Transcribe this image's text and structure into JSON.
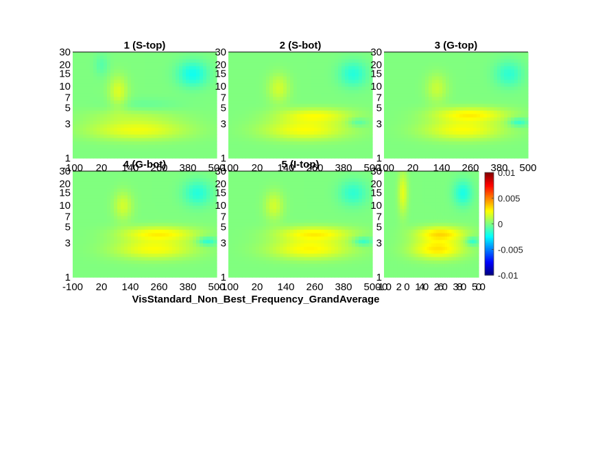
{
  "figure": {
    "suptitle": "VisStandard_Non_Best_Frequency_GrandAverage"
  },
  "chart_data": [
    {
      "type": "heatmap",
      "title": "1 (S-top)",
      "x_ticks": [
        "-100",
        "20",
        "140",
        "260",
        "380",
        "500"
      ],
      "y_ticks": [
        "1",
        "3",
        "5",
        "7",
        "10",
        "15",
        "20",
        "30"
      ],
      "xlim": [
        -100,
        500
      ],
      "ylim": [
        1,
        30
      ],
      "y_scale": "log",
      "features": [
        {
          "x": 170,
          "y": 2.5,
          "wx": 420,
          "wy": 0.14,
          "value": 0.0022
        },
        {
          "x": 150,
          "y": 4.0,
          "wx": 400,
          "wy": 0.1,
          "value": 0.0008
        },
        {
          "x": 90,
          "y": 8.5,
          "wx": 80,
          "wy": 0.22,
          "value": 0.0018
        },
        {
          "x": 400,
          "y": 15,
          "wx": 130,
          "wy": 0.18,
          "value": -0.0022
        },
        {
          "x": 20,
          "y": 20,
          "wx": 60,
          "wy": 0.15,
          "value": -0.0008
        },
        {
          "x": 200,
          "y": 5.5,
          "wx": 300,
          "wy": 0.1,
          "value": -0.0005
        }
      ]
    },
    {
      "type": "heatmap",
      "title": "2 (S-bot)",
      "x_ticks": [
        "-100",
        "20",
        "140",
        "260",
        "380",
        "500"
      ],
      "y_ticks": [
        "1",
        "3",
        "5",
        "7",
        "10",
        "15",
        "20",
        "30"
      ],
      "xlim": [
        -100,
        500
      ],
      "ylim": [
        1,
        30
      ],
      "y_scale": "log",
      "features": [
        {
          "x": 220,
          "y": 2.5,
          "wx": 360,
          "wy": 0.14,
          "value": 0.0024
        },
        {
          "x": 260,
          "y": 4.0,
          "wx": 320,
          "wy": 0.1,
          "value": 0.0022
        },
        {
          "x": 110,
          "y": 9.5,
          "wx": 90,
          "wy": 0.2,
          "value": 0.0016
        },
        {
          "x": 420,
          "y": 15,
          "wx": 120,
          "wy": 0.18,
          "value": -0.0018
        },
        {
          "x": 440,
          "y": 3.2,
          "wx": 80,
          "wy": 0.06,
          "value": -0.0012
        }
      ]
    },
    {
      "type": "heatmap",
      "title": "3 (G-top)",
      "x_ticks": [
        "-100",
        "20",
        "140",
        "260",
        "380",
        "500"
      ],
      "y_ticks": [
        "1",
        "3",
        "5",
        "7",
        "10",
        "15",
        "20",
        "30"
      ],
      "xlim": [
        -100,
        500
      ],
      "ylim": [
        1,
        30
      ],
      "y_scale": "log",
      "features": [
        {
          "x": 230,
          "y": 2.5,
          "wx": 340,
          "wy": 0.14,
          "value": 0.0024
        },
        {
          "x": 260,
          "y": 4.1,
          "wx": 320,
          "wy": 0.1,
          "value": 0.0026
        },
        {
          "x": 120,
          "y": 9.5,
          "wx": 90,
          "wy": 0.2,
          "value": 0.0014
        },
        {
          "x": 420,
          "y": 15,
          "wx": 120,
          "wy": 0.18,
          "value": -0.0016
        },
        {
          "x": 460,
          "y": 3.2,
          "wx": 80,
          "wy": 0.06,
          "value": -0.0018
        }
      ]
    },
    {
      "type": "heatmap",
      "title": "4 (G-bot)",
      "x_ticks": [
        "-100",
        "20",
        "140",
        "260",
        "380",
        "500"
      ],
      "y_ticks": [
        "1",
        "3",
        "5",
        "7",
        "10",
        "15",
        "20",
        "30"
      ],
      "xlim": [
        -100,
        500
      ],
      "ylim": [
        1,
        30
      ],
      "y_scale": "log",
      "features": [
        {
          "x": 240,
          "y": 2.5,
          "wx": 340,
          "wy": 0.14,
          "value": 0.0024
        },
        {
          "x": 260,
          "y": 4.1,
          "wx": 320,
          "wy": 0.1,
          "value": 0.0026
        },
        {
          "x": 110,
          "y": 10,
          "wx": 80,
          "wy": 0.2,
          "value": 0.0016
        },
        {
          "x": 420,
          "y": 15,
          "wx": 120,
          "wy": 0.18,
          "value": -0.0018
        },
        {
          "x": 460,
          "y": 3.2,
          "wx": 80,
          "wy": 0.06,
          "value": -0.002
        }
      ]
    },
    {
      "type": "heatmap",
      "title": "5 (I-top)",
      "x_ticks": [
        "-100",
        "20",
        "140",
        "260",
        "380",
        "500"
      ],
      "y_ticks": [
        "1",
        "3",
        "5",
        "7",
        "10",
        "15",
        "20",
        "30"
      ],
      "xlim": [
        -100,
        500
      ],
      "ylim": [
        1,
        30
      ],
      "y_scale": "log",
      "features": [
        {
          "x": 240,
          "y": 2.5,
          "wx": 340,
          "wy": 0.14,
          "value": 0.0026
        },
        {
          "x": 260,
          "y": 4.1,
          "wx": 320,
          "wy": 0.1,
          "value": 0.0026
        },
        {
          "x": 90,
          "y": 10,
          "wx": 80,
          "wy": 0.2,
          "value": 0.0016
        },
        {
          "x": 420,
          "y": 15,
          "wx": 120,
          "wy": 0.18,
          "value": -0.0016
        },
        {
          "x": 460,
          "y": 3.2,
          "wx": 80,
          "wy": 0.06,
          "value": -0.0018
        }
      ]
    },
    {
      "type": "heatmap",
      "title": "",
      "x_ticks": [
        "-100",
        "20",
        "140",
        "260",
        "380",
        "500"
      ],
      "y_ticks": [
        "1",
        "3",
        "5",
        "7",
        "10",
        "15",
        "20",
        "30"
      ],
      "xlim": [
        -100,
        500
      ],
      "ylim": [
        1,
        30
      ],
      "y_scale": "log",
      "features": [
        {
          "x": 240,
          "y": 2.5,
          "wx": 340,
          "wy": 0.14,
          "value": 0.003
        },
        {
          "x": 260,
          "y": 4.1,
          "wx": 320,
          "wy": 0.1,
          "value": 0.003
        },
        {
          "x": 20,
          "y": 15,
          "wx": 60,
          "wy": 0.3,
          "value": 0.002
        },
        {
          "x": 400,
          "y": 15,
          "wx": 120,
          "wy": 0.18,
          "value": -0.002
        },
        {
          "x": 460,
          "y": 3.2,
          "wx": 80,
          "wy": 0.06,
          "value": -0.002
        }
      ]
    }
  ],
  "colorbar": {
    "colormap": "jet",
    "clim": [
      -0.01,
      0.01
    ],
    "ticks": [
      {
        "value": 0.01,
        "label": "0.01"
      },
      {
        "value": 0.005,
        "label": "0.005"
      },
      {
        "value": 0,
        "label": "0"
      },
      {
        "value": -0.005,
        "label": "-0.005"
      },
      {
        "value": -0.01,
        "label": "-0.01"
      }
    ]
  }
}
